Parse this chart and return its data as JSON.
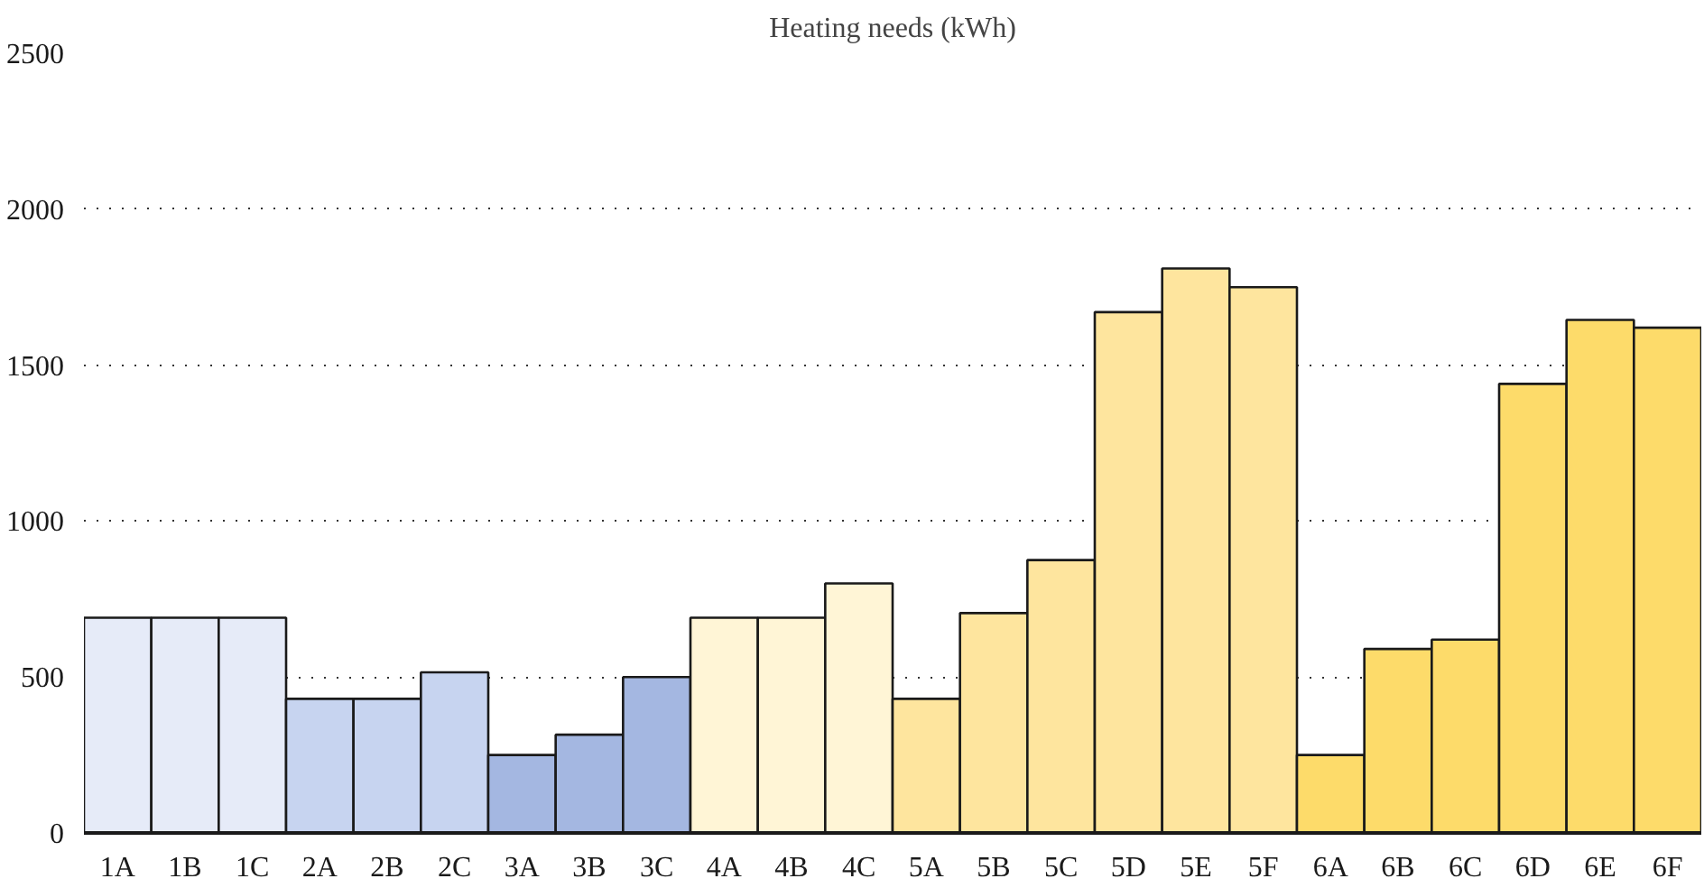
{
  "chart_data": {
    "type": "bar",
    "title": "Heating needs (kWh)",
    "categories": [
      "1A",
      "1B",
      "1C",
      "2A",
      "2B",
      "2C",
      "3A",
      "3B",
      "3C",
      "4A",
      "4B",
      "4C",
      "5A",
      "5B",
      "5C",
      "5D",
      "5E",
      "5F",
      "6A",
      "6B",
      "6C",
      "6D",
      "6E",
      "6F"
    ],
    "values": [
      690,
      690,
      690,
      430,
      430,
      515,
      250,
      315,
      500,
      690,
      690,
      800,
      430,
      705,
      875,
      1670,
      1810,
      1750,
      250,
      590,
      620,
      1440,
      1645,
      1620
    ],
    "colors": [
      "#e6ebf8",
      "#e6ebf8",
      "#e6ebf8",
      "#c7d4f0",
      "#c7d4f0",
      "#c7d4f0",
      "#a4b7e1",
      "#a4b7e1",
      "#a4b7e1",
      "#fff5d6",
      "#fff5d6",
      "#fff5d6",
      "#fee59e",
      "#fee59e",
      "#fee59e",
      "#fee59e",
      "#fee59e",
      "#fee59e",
      "#fddb6a",
      "#fddb6a",
      "#fddb6a",
      "#fddb6a",
      "#fddb6a",
      "#fddb6a"
    ],
    "ylim": [
      0,
      2500
    ],
    "yticks": [
      0,
      500,
      1000,
      1500,
      2000,
      2500
    ],
    "grid": "y"
  }
}
